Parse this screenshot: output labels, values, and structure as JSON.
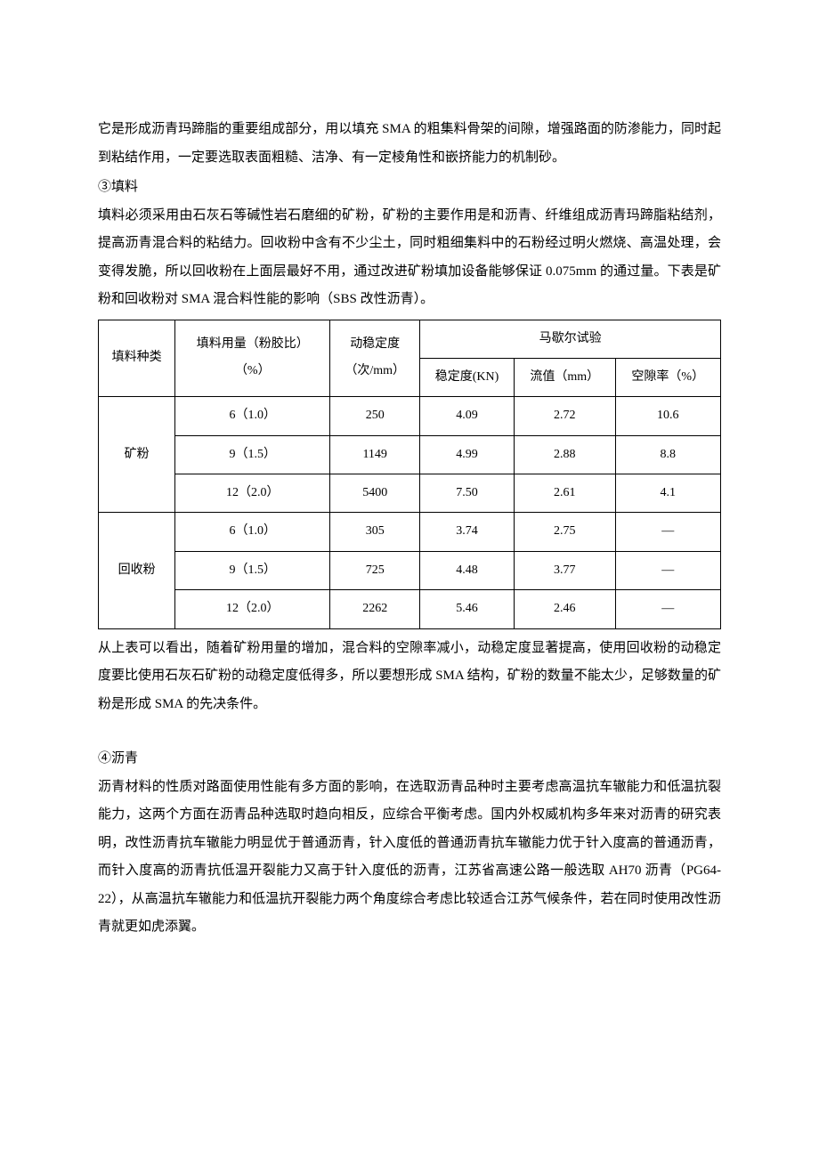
{
  "para1": "它是形成沥青玛蹄脂的重要组成部分，用以填充 SMA 的粗集料骨架的间隙，增强路面的防渗能力，同时起到粘结作用，一定要选取表面粗糙、洁净、有一定棱角性和嵌挤能力的机制砂。",
  "section3_header": "③填料",
  "para2": "填料必须采用由石灰石等碱性岩石磨细的矿粉，矿粉的主要作用是和沥青、纤维组成沥青玛蹄脂粘结剂，提高沥青混合料的粘结力。回收粉中含有不少尘土，同时粗细集料中的石粉经过明火燃烧、高温处理，会变得发脆，所以回收粉在上面层最好不用，通过改进矿粉填加设备能够保证 0.075mm 的通过量。下表是矿粉和回收粉对 SMA 混合料性能的影响（SBS 改性沥青）。",
  "table": {
    "headers": {
      "col1": "填料种类",
      "col2_line1": "填料用量（粉胶比）",
      "col2_line2": "（%）",
      "col3_line1": "动稳定度",
      "col3_line2": "（次/mm）",
      "col4_merged": "马歇尔试验",
      "col4_sub1": "稳定度(KN)",
      "col4_sub2": "流值（mm）",
      "col4_sub3": "空隙率（%）"
    },
    "groups": [
      {
        "label": "矿粉",
        "rows": [
          {
            "dosage": "6（1.0）",
            "stability_dyn": "250",
            "marshall_stab": "4.09",
            "flow": "2.72",
            "void": "10.6"
          },
          {
            "dosage": "9（1.5）",
            "stability_dyn": "1149",
            "marshall_stab": "4.99",
            "flow": "2.88",
            "void": "8.8"
          },
          {
            "dosage": "12（2.0）",
            "stability_dyn": "5400",
            "marshall_stab": "7.50",
            "flow": "2.61",
            "void": "4.1"
          }
        ]
      },
      {
        "label": "回收粉",
        "rows": [
          {
            "dosage": "6（1.0）",
            "stability_dyn": "305",
            "marshall_stab": "3.74",
            "flow": "2.75",
            "void": "—"
          },
          {
            "dosage": "9（1.5）",
            "stability_dyn": "725",
            "marshall_stab": "4.48",
            "flow": "3.77",
            "void": "—"
          },
          {
            "dosage": "12（2.0）",
            "stability_dyn": "2262",
            "marshall_stab": "5.46",
            "flow": "2.46",
            "void": "—"
          }
        ]
      }
    ]
  },
  "para3": "从上表可以看出，随着矿粉用量的增加，混合料的空隙率减小，动稳定度显著提高，使用回收粉的动稳定度要比使用石灰石矿粉的动稳定度低得多，所以要想形成 SMA 结构，矿粉的数量不能太少，足够数量的矿粉是形成 SMA 的先决条件。",
  "section4_header": "④沥青",
  "para4": "沥青材料的性质对路面使用性能有多方面的影响，在选取沥青品种时主要考虑高温抗车辙能力和低温抗裂能力，这两个方面在沥青品种选取时趋向相反，应综合平衡考虑。国内外权威机构多年来对沥青的研究表明，改性沥青抗车辙能力明显优于普通沥青，针入度低的普通沥青抗车辙能力优于针入度高的普通沥青，而针入度高的沥青抗低温开裂能力又高于针入度低的沥青，江苏省高速公路一般选取 AH70 沥青（PG64-22），从高温抗车辙能力和低温抗开裂能力两个角度综合考虑比较适合江苏气候条件，若在同时使用改性沥青就更如虎添翼。"
}
